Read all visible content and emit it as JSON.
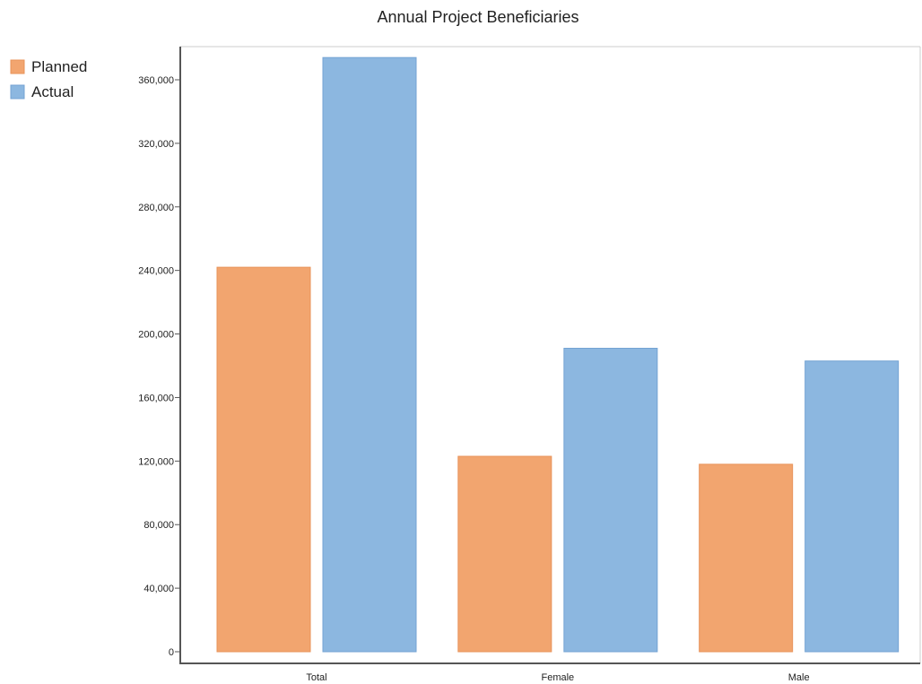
{
  "chart_data": {
    "type": "bar",
    "title": "Annual Project Beneficiaries",
    "xlabel": "",
    "ylabel": "",
    "categories": [
      "Total",
      "Female",
      "Male"
    ],
    "series": [
      {
        "name": "Planned",
        "color": "#f2a56f",
        "stroke": "#e8935a",
        "values": [
          242000,
          123000,
          118000
        ]
      },
      {
        "name": "Actual",
        "color": "#8cb7e0",
        "stroke": "#74a3d3",
        "values": [
          374000,
          191000,
          183000
        ]
      }
    ],
    "ylim": [
      0,
      360000
    ],
    "yticks": [
      0,
      40000,
      80000,
      120000,
      160000,
      200000,
      240000,
      280000,
      320000,
      360000
    ],
    "ytick_labels": [
      "0",
      "40,000",
      "80,000",
      "120,000",
      "160,000",
      "200,000",
      "240,000",
      "280,000",
      "320,000",
      "360,000"
    ],
    "legend_position": "top-left",
    "grid": false
  }
}
